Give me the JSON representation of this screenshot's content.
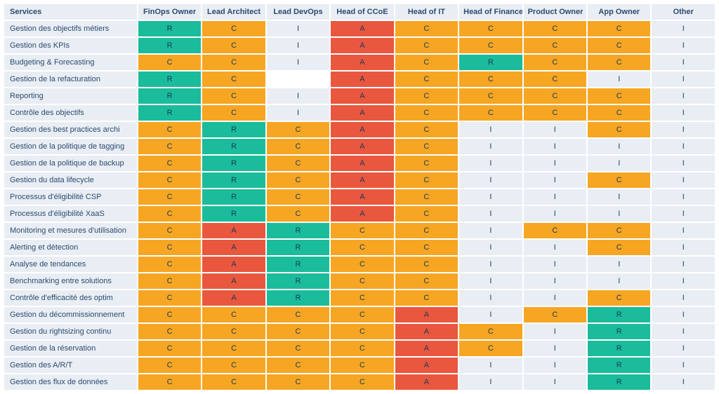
{
  "colors": {
    "header_bg": "#e9eef4",
    "header_text": "#2b4a6f",
    "R": "#1bbc9b",
    "A": "#e9573f",
    "C": "#f6a623",
    "I": "#e9eef4",
    "blank": "#ffffff"
  },
  "columns": [
    "Services",
    "FinOps Owner",
    "Lead Architect",
    "Lead DevOps",
    "Head of CCoE",
    "Head of IT",
    "Head of Finance",
    "Product Owner",
    "App Owner",
    "Other"
  ],
  "rows": [
    {
      "service": "Gestion des objectifs métiers",
      "cells": [
        "R",
        "C",
        "I",
        "A",
        "C",
        "C",
        "C",
        "C",
        "I"
      ]
    },
    {
      "service": "Gestion des KPIs",
      "cells": [
        "R",
        "C",
        "I",
        "A",
        "C",
        "C",
        "C",
        "C",
        "I"
      ]
    },
    {
      "service": "Budgeting & Forecasting",
      "cells": [
        "C",
        "C",
        "I",
        "A",
        "C",
        "R",
        "C",
        "C",
        "I"
      ]
    },
    {
      "service": "Gestion de la refacturation",
      "cells": [
        "R",
        "C",
        "",
        "A",
        "C",
        "C",
        "C",
        "I",
        "I"
      ]
    },
    {
      "service": "Reporting",
      "cells": [
        "R",
        "C",
        "I",
        "A",
        "C",
        "C",
        "C",
        "C",
        "I"
      ]
    },
    {
      "service": "Contrôle des objectifs",
      "cells": [
        "R",
        "C",
        "I",
        "A",
        "C",
        "C",
        "C",
        "C",
        "I"
      ]
    },
    {
      "service": "Gestion des best practices archi",
      "cells": [
        "C",
        "R",
        "C",
        "A",
        "C",
        "I",
        "I",
        "C",
        "I"
      ]
    },
    {
      "service": "Gestion de la politique de tagging",
      "cells": [
        "C",
        "R",
        "C",
        "A",
        "C",
        "I",
        "I",
        "I",
        "I"
      ]
    },
    {
      "service": "Gestion de la politique de backup",
      "cells": [
        "C",
        "R",
        "C",
        "A",
        "C",
        "I",
        "I",
        "I",
        "I"
      ]
    },
    {
      "service": "Gestion du data lifecycle",
      "cells": [
        "C",
        "R",
        "C",
        "A",
        "C",
        "I",
        "I",
        "C",
        "I"
      ]
    },
    {
      "service": "Processus d'éligibilité CSP",
      "cells": [
        "C",
        "R",
        "C",
        "A",
        "C",
        "I",
        "I",
        "I",
        "I"
      ]
    },
    {
      "service": "Processus d'éligibilité XaaS",
      "cells": [
        "C",
        "R",
        "C",
        "A",
        "C",
        "I",
        "I",
        "I",
        "I"
      ]
    },
    {
      "service": "Monitoring et mesures d'utilisation",
      "cells": [
        "C",
        "A",
        "R",
        "C",
        "C",
        "I",
        "C",
        "C",
        "I"
      ]
    },
    {
      "service": "Alerting et détection",
      "cells": [
        "C",
        "A",
        "R",
        "C",
        "C",
        "I",
        "I",
        "C",
        "I"
      ]
    },
    {
      "service": "Analyse de tendances",
      "cells": [
        "C",
        "A",
        "R",
        "C",
        "C",
        "I",
        "I",
        "I",
        "I"
      ]
    },
    {
      "service": "Benchmarking entre solutions",
      "cells": [
        "C",
        "A",
        "R",
        "C",
        "C",
        "I",
        "I",
        "I",
        "I"
      ]
    },
    {
      "service": "Contrôle d'efficacité des optim",
      "cells": [
        "C",
        "A",
        "R",
        "C",
        "C",
        "I",
        "I",
        "C",
        "I"
      ]
    },
    {
      "service": "Gestion du décommissionnement",
      "cells": [
        "C",
        "C",
        "C",
        "C",
        "A",
        "I",
        "C",
        "R",
        "I"
      ]
    },
    {
      "service": "Gestion du rightsizing continu",
      "cells": [
        "C",
        "C",
        "C",
        "C",
        "A",
        "C",
        "I",
        "R",
        "I"
      ]
    },
    {
      "service": "Gestion de la réservation",
      "cells": [
        "C",
        "C",
        "C",
        "C",
        "A",
        "C",
        "I",
        "R",
        "I"
      ]
    },
    {
      "service": "Gestion des A/R/T",
      "cells": [
        "C",
        "C",
        "C",
        "C",
        "A",
        "I",
        "I",
        "R",
        "I"
      ]
    },
    {
      "service": "Gestion des flux de données",
      "cells": [
        "C",
        "C",
        "C",
        "C",
        "A",
        "I",
        "I",
        "R",
        "I"
      ]
    }
  ]
}
